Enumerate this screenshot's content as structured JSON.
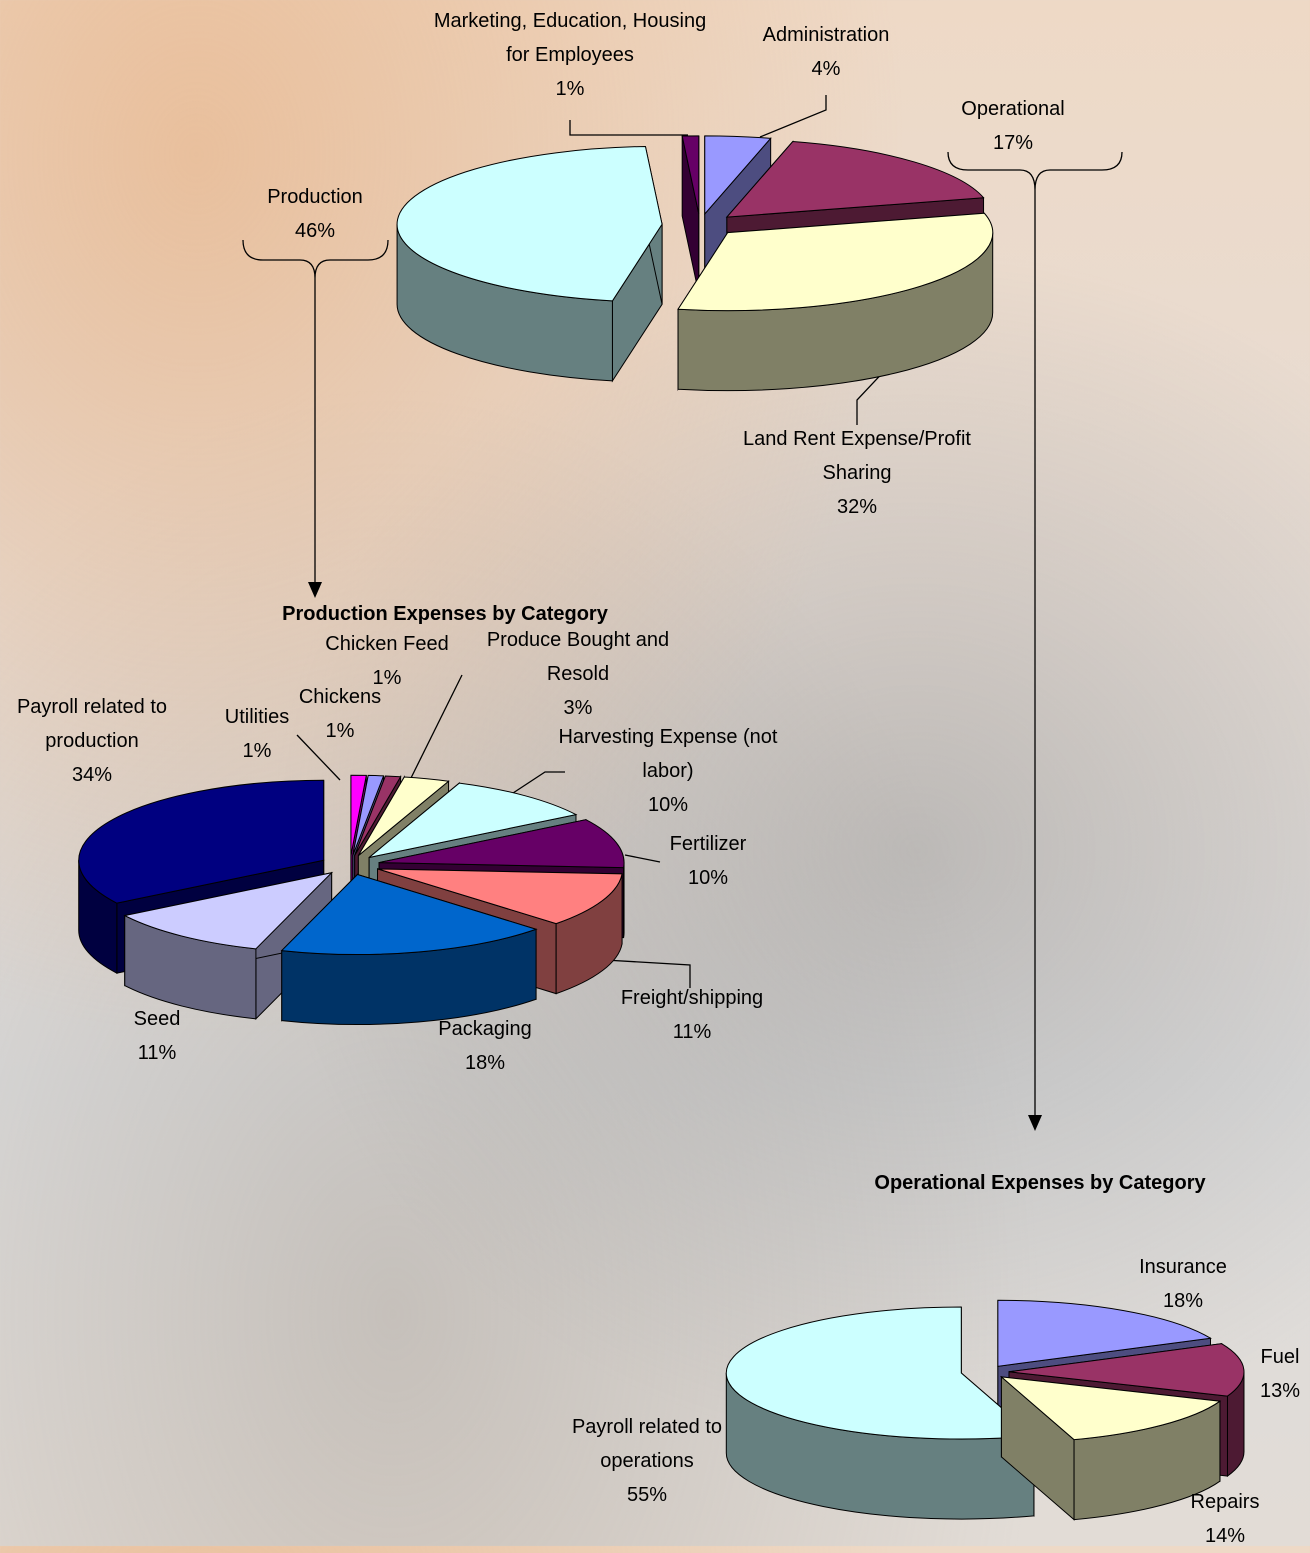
{
  "chart_data": [
    {
      "type": "pie",
      "categories": [
        "Administration",
        "Operational",
        "Land Rent Expense/Profit Sharing",
        "Production",
        "Marketing, Education, Housing for Employees"
      ],
      "values": [
        4,
        17,
        32,
        46,
        1
      ],
      "value_labels": [
        "4%",
        "17%",
        "32%",
        "46%",
        "1%"
      ],
      "colors": [
        "#9999ff",
        "#993366",
        "#ffffcc",
        "#ccffff",
        "#660066"
      ]
    },
    {
      "type": "pie",
      "title": "Production Expenses by Category",
      "categories": [
        "Utilities",
        "Chickens",
        "Chicken Feed",
        "Produce Bought and Resold",
        "Harvesting Expense (not labor)",
        "Fertilizer",
        "Freight/shipping",
        "Packaging",
        "Seed",
        "Payroll related to production"
      ],
      "values": [
        1,
        1,
        1,
        3,
        10,
        10,
        11,
        18,
        11,
        34
      ],
      "value_labels": [
        "1%",
        "1%",
        "1%",
        "3%",
        "10%",
        "10%",
        "11%",
        "18%",
        "11%",
        "34%"
      ],
      "colors": [
        "#ff00ff",
        "#9999ff",
        "#993366",
        "#ffffcc",
        "#ccffff",
        "#660066",
        "#ff8080",
        "#0066cc",
        "#ccccff",
        "#000080"
      ]
    },
    {
      "type": "pie",
      "title": "Operational Expenses by Category",
      "categories": [
        "Insurance",
        "Fuel",
        "Repairs",
        "Payroll related to operations"
      ],
      "values": [
        18,
        13,
        14,
        55
      ],
      "value_labels": [
        "18%",
        "13%",
        "14%",
        "55%"
      ],
      "colors": [
        "#9999ff",
        "#993366",
        "#ffffcc",
        "#ccffff"
      ]
    }
  ]
}
